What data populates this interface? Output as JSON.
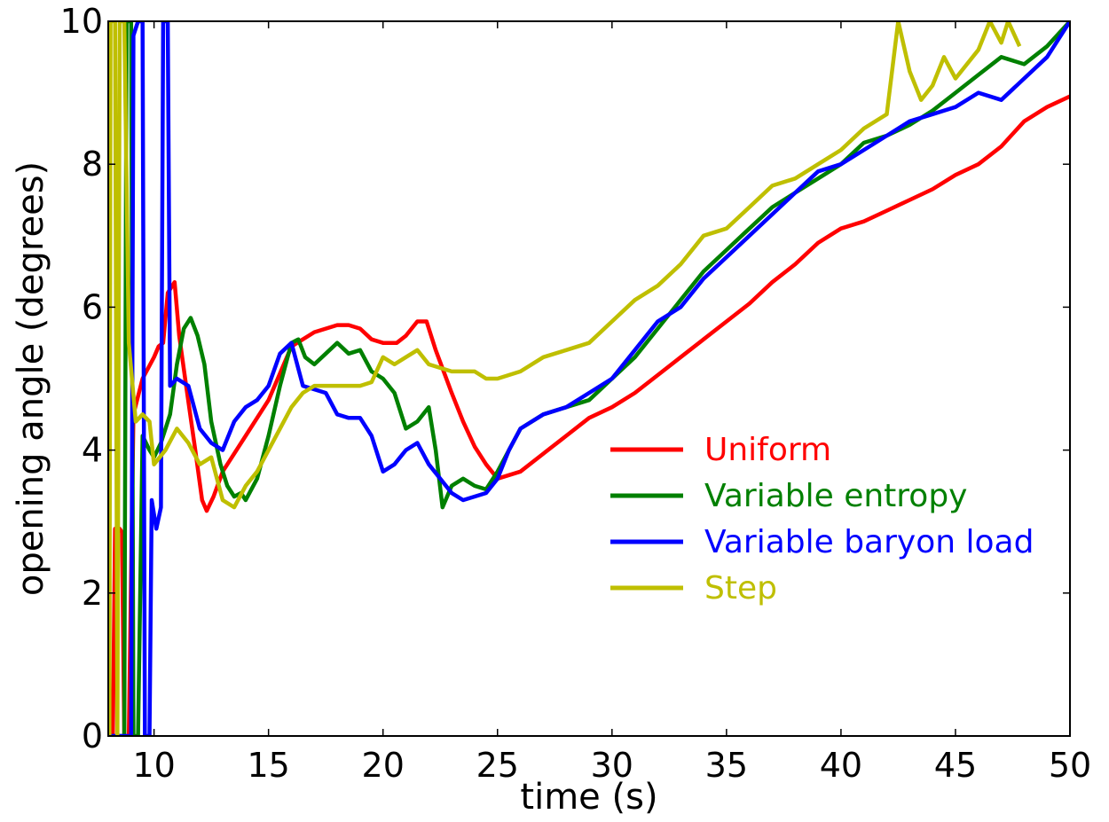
{
  "chart_data": {
    "type": "line",
    "title": "",
    "xlabel": "time (s)",
    "ylabel": "opening angle (degrees)",
    "xlim": [
      8,
      50
    ],
    "ylim": [
      0,
      10
    ],
    "x_ticks": [
      10,
      15,
      20,
      25,
      30,
      35,
      40,
      45,
      50
    ],
    "y_ticks": [
      0,
      2,
      4,
      6,
      8,
      10
    ],
    "grid": false,
    "legend_position": "center-right",
    "series": [
      {
        "name": "Uniform",
        "color": "#ff0000",
        "points": [
          [
            8.0,
            0.0
          ],
          [
            8.2,
            0.0
          ],
          [
            8.3,
            2.9
          ],
          [
            8.5,
            2.9
          ],
          [
            8.6,
            2.85
          ],
          [
            8.7,
            0.0
          ],
          [
            8.9,
            0.0
          ],
          [
            9.1,
            4.5
          ],
          [
            9.5,
            5.0
          ],
          [
            10.0,
            5.3
          ],
          [
            10.2,
            5.45
          ],
          [
            10.4,
            5.5
          ],
          [
            10.6,
            6.2
          ],
          [
            10.9,
            6.35
          ],
          [
            11.1,
            5.6
          ],
          [
            11.4,
            4.9
          ],
          [
            11.8,
            4.0
          ],
          [
            12.1,
            3.3
          ],
          [
            12.3,
            3.15
          ],
          [
            12.6,
            3.35
          ],
          [
            13.0,
            3.7
          ],
          [
            14.0,
            4.2
          ],
          [
            15.0,
            4.7
          ],
          [
            16.0,
            5.45
          ],
          [
            17.0,
            5.65
          ],
          [
            18.0,
            5.75
          ],
          [
            18.5,
            5.75
          ],
          [
            19.0,
            5.7
          ],
          [
            19.5,
            5.55
          ],
          [
            20.0,
            5.5
          ],
          [
            20.6,
            5.5
          ],
          [
            21.0,
            5.6
          ],
          [
            21.5,
            5.8
          ],
          [
            21.9,
            5.8
          ],
          [
            22.3,
            5.4
          ],
          [
            23.0,
            4.8
          ],
          [
            23.5,
            4.4
          ],
          [
            24.0,
            4.05
          ],
          [
            24.5,
            3.8
          ],
          [
            25.0,
            3.6
          ],
          [
            26.0,
            3.7
          ],
          [
            27.0,
            3.95
          ],
          [
            28.0,
            4.2
          ],
          [
            29.0,
            4.45
          ],
          [
            30.0,
            4.6
          ],
          [
            31.0,
            4.8
          ],
          [
            32.0,
            5.05
          ],
          [
            33.0,
            5.3
          ],
          [
            34.0,
            5.55
          ],
          [
            35.0,
            5.8
          ],
          [
            36.0,
            6.05
          ],
          [
            37.0,
            6.35
          ],
          [
            38.0,
            6.6
          ],
          [
            39.0,
            6.9
          ],
          [
            40.0,
            7.1
          ],
          [
            41.0,
            7.2
          ],
          [
            42.0,
            7.35
          ],
          [
            43.0,
            7.5
          ],
          [
            44.0,
            7.65
          ],
          [
            45.0,
            7.85
          ],
          [
            46.0,
            8.0
          ],
          [
            47.0,
            8.25
          ],
          [
            48.0,
            8.6
          ],
          [
            49.0,
            8.8
          ],
          [
            50.0,
            8.95
          ]
        ]
      },
      {
        "name": "Variable entropy",
        "color": "#008000",
        "points": [
          [
            8.0,
            0.0
          ],
          [
            8.7,
            0.0
          ],
          [
            8.8,
            10.0
          ],
          [
            9.0,
            10.0
          ],
          [
            9.1,
            0.0
          ],
          [
            9.3,
            0.0
          ],
          [
            9.5,
            4.2
          ],
          [
            9.8,
            4.0
          ],
          [
            10.0,
            3.9
          ],
          [
            10.3,
            4.1
          ],
          [
            10.7,
            4.5
          ],
          [
            11.0,
            5.2
          ],
          [
            11.3,
            5.7
          ],
          [
            11.6,
            5.85
          ],
          [
            11.9,
            5.6
          ],
          [
            12.2,
            5.2
          ],
          [
            12.5,
            4.4
          ],
          [
            12.9,
            3.8
          ],
          [
            13.2,
            3.5
          ],
          [
            13.5,
            3.35
          ],
          [
            13.8,
            3.4
          ],
          [
            14.0,
            3.3
          ],
          [
            14.5,
            3.6
          ],
          [
            15.0,
            4.2
          ],
          [
            15.5,
            4.9
          ],
          [
            16.0,
            5.5
          ],
          [
            16.3,
            5.55
          ],
          [
            16.6,
            5.3
          ],
          [
            17.0,
            5.2
          ],
          [
            17.5,
            5.35
          ],
          [
            18.0,
            5.5
          ],
          [
            18.5,
            5.35
          ],
          [
            19.0,
            5.4
          ],
          [
            19.5,
            5.1
          ],
          [
            20.0,
            5.0
          ],
          [
            20.5,
            4.8
          ],
          [
            21.0,
            4.3
          ],
          [
            21.5,
            4.4
          ],
          [
            22.0,
            4.6
          ],
          [
            22.3,
            4.0
          ],
          [
            22.6,
            3.2
          ],
          [
            23.0,
            3.5
          ],
          [
            23.5,
            3.6
          ],
          [
            24.0,
            3.5
          ],
          [
            24.5,
            3.45
          ],
          [
            25.0,
            3.7
          ],
          [
            25.5,
            4.0
          ],
          [
            26.0,
            4.3
          ],
          [
            27.0,
            4.5
          ],
          [
            28.0,
            4.6
          ],
          [
            29.0,
            4.7
          ],
          [
            30.0,
            5.0
          ],
          [
            31.0,
            5.3
          ],
          [
            32.0,
            5.7
          ],
          [
            33.0,
            6.1
          ],
          [
            34.0,
            6.5
          ],
          [
            35.0,
            6.8
          ],
          [
            36.0,
            7.1
          ],
          [
            37.0,
            7.4
          ],
          [
            38.0,
            7.6
          ],
          [
            39.0,
            7.8
          ],
          [
            40.0,
            8.0
          ],
          [
            41.0,
            8.3
          ],
          [
            42.0,
            8.4
          ],
          [
            43.0,
            8.55
          ],
          [
            44.0,
            8.75
          ],
          [
            45.0,
            9.0
          ],
          [
            46.0,
            9.25
          ],
          [
            47.0,
            9.5
          ],
          [
            48.0,
            9.4
          ],
          [
            49.0,
            9.65
          ],
          [
            50.0,
            10.0
          ]
        ]
      },
      {
        "name": "Variable baryon load",
        "color": "#0000ff",
        "points": [
          [
            8.0,
            0.0
          ],
          [
            8.9,
            0.0
          ],
          [
            9.0,
            0.0
          ],
          [
            9.1,
            9.8
          ],
          [
            9.3,
            10.0
          ],
          [
            9.5,
            10.0
          ],
          [
            9.6,
            0.0
          ],
          [
            9.8,
            0.0
          ],
          [
            9.9,
            3.3
          ],
          [
            10.1,
            2.9
          ],
          [
            10.3,
            3.2
          ],
          [
            10.4,
            10.0
          ],
          [
            10.6,
            10.0
          ],
          [
            10.7,
            4.9
          ],
          [
            11.0,
            5.0
          ],
          [
            11.5,
            4.9
          ],
          [
            12.0,
            4.3
          ],
          [
            12.5,
            4.1
          ],
          [
            13.0,
            4.0
          ],
          [
            13.5,
            4.4
          ],
          [
            14.0,
            4.6
          ],
          [
            14.5,
            4.7
          ],
          [
            15.0,
            4.9
          ],
          [
            15.5,
            5.35
          ],
          [
            16.0,
            5.5
          ],
          [
            16.5,
            4.9
          ],
          [
            17.0,
            4.85
          ],
          [
            17.5,
            4.8
          ],
          [
            18.0,
            4.5
          ],
          [
            18.5,
            4.45
          ],
          [
            19.0,
            4.45
          ],
          [
            19.5,
            4.2
          ],
          [
            20.0,
            3.7
          ],
          [
            20.5,
            3.8
          ],
          [
            21.0,
            4.0
          ],
          [
            21.5,
            4.1
          ],
          [
            22.0,
            3.8
          ],
          [
            22.5,
            3.6
          ],
          [
            23.0,
            3.4
          ],
          [
            23.5,
            3.3
          ],
          [
            24.0,
            3.35
          ],
          [
            24.5,
            3.4
          ],
          [
            25.0,
            3.6
          ],
          [
            25.5,
            4.0
          ],
          [
            26.0,
            4.3
          ],
          [
            27.0,
            4.5
          ],
          [
            28.0,
            4.6
          ],
          [
            29.0,
            4.8
          ],
          [
            30.0,
            5.0
          ],
          [
            31.0,
            5.4
          ],
          [
            32.0,
            5.8
          ],
          [
            33.0,
            6.0
          ],
          [
            34.0,
            6.4
          ],
          [
            35.0,
            6.7
          ],
          [
            36.0,
            7.0
          ],
          [
            37.0,
            7.3
          ],
          [
            38.0,
            7.6
          ],
          [
            39.0,
            7.9
          ],
          [
            40.0,
            8.0
          ],
          [
            41.0,
            8.2
          ],
          [
            42.0,
            8.4
          ],
          [
            43.0,
            8.6
          ],
          [
            44.0,
            8.7
          ],
          [
            45.0,
            8.8
          ],
          [
            46.0,
            9.0
          ],
          [
            47.0,
            8.9
          ],
          [
            48.0,
            9.2
          ],
          [
            49.0,
            9.5
          ],
          [
            50.0,
            10.0
          ]
        ]
      },
      {
        "name": "Step",
        "color": "#bfbf00",
        "points": [
          [
            8.0,
            0.0
          ],
          [
            8.05,
            0.0
          ],
          [
            8.1,
            10.0
          ],
          [
            8.3,
            10.0
          ],
          [
            8.4,
            0.0
          ],
          [
            8.5,
            10.0
          ],
          [
            8.7,
            10.0
          ],
          [
            8.9,
            5.5
          ],
          [
            9.2,
            4.4
          ],
          [
            9.5,
            4.5
          ],
          [
            9.8,
            4.4
          ],
          [
            10.0,
            3.8
          ],
          [
            10.5,
            4.0
          ],
          [
            11.0,
            4.3
          ],
          [
            11.5,
            4.1
          ],
          [
            12.0,
            3.8
          ],
          [
            12.5,
            3.9
          ],
          [
            13.0,
            3.3
          ],
          [
            13.5,
            3.2
          ],
          [
            14.0,
            3.5
          ],
          [
            14.5,
            3.7
          ],
          [
            15.0,
            4.0
          ],
          [
            15.5,
            4.3
          ],
          [
            16.0,
            4.6
          ],
          [
            16.5,
            4.8
          ],
          [
            17.0,
            4.9
          ],
          [
            18.0,
            4.9
          ],
          [
            19.0,
            4.9
          ],
          [
            19.5,
            4.95
          ],
          [
            20.0,
            5.3
          ],
          [
            20.5,
            5.2
          ],
          [
            21.0,
            5.3
          ],
          [
            21.5,
            5.4
          ],
          [
            22.0,
            5.2
          ],
          [
            22.5,
            5.15
          ],
          [
            23.0,
            5.1
          ],
          [
            23.5,
            5.1
          ],
          [
            24.0,
            5.1
          ],
          [
            24.5,
            5.0
          ],
          [
            25.0,
            5.0
          ],
          [
            26.0,
            5.1
          ],
          [
            27.0,
            5.3
          ],
          [
            28.0,
            5.4
          ],
          [
            29.0,
            5.5
          ],
          [
            30.0,
            5.8
          ],
          [
            31.0,
            6.1
          ],
          [
            32.0,
            6.3
          ],
          [
            33.0,
            6.6
          ],
          [
            34.0,
            7.0
          ],
          [
            35.0,
            7.1
          ],
          [
            36.0,
            7.4
          ],
          [
            37.0,
            7.7
          ],
          [
            38.0,
            7.8
          ],
          [
            39.0,
            8.0
          ],
          [
            40.0,
            8.2
          ],
          [
            41.0,
            8.5
          ],
          [
            42.0,
            8.7
          ],
          [
            42.5,
            10.0
          ],
          [
            43.0,
            9.3
          ],
          [
            43.5,
            8.9
          ],
          [
            44.0,
            9.1
          ],
          [
            44.5,
            9.5
          ],
          [
            45.0,
            9.2
          ],
          [
            46.0,
            9.6
          ],
          [
            46.5,
            10.0
          ],
          [
            47.0,
            9.7
          ],
          [
            47.3,
            10.0
          ],
          [
            47.8,
            9.65
          ]
        ]
      }
    ]
  }
}
